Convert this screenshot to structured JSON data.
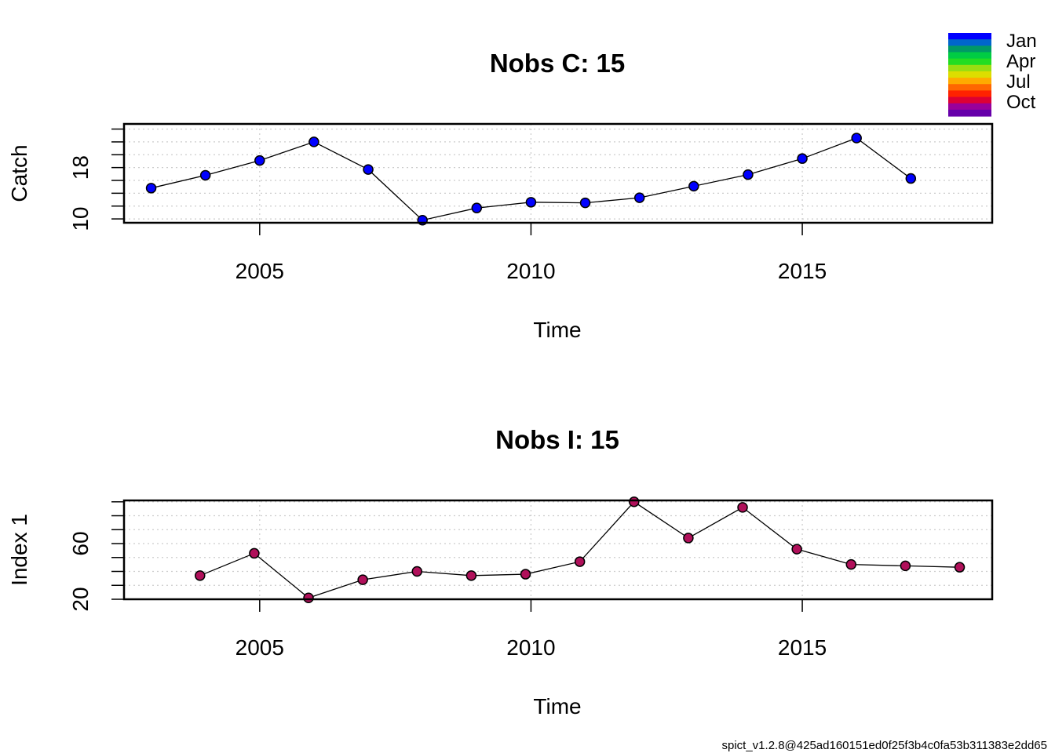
{
  "chart_data": [
    {
      "type": "line",
      "title": "Nobs C: 15",
      "xlabel": "Time",
      "ylabel": "Catch",
      "xlim": [
        2002.5,
        2018.5
      ],
      "ylim": [
        9.4,
        24.8
      ],
      "xticks": [
        2005,
        2010,
        2015
      ],
      "yticks": [
        10,
        12,
        14,
        16,
        18,
        20,
        22,
        24
      ],
      "ytick_labels": [
        10,
        18
      ],
      "grid": true,
      "point_color": "#0000FF",
      "series": [
        {
          "x": [
            2003,
            2004,
            2005,
            2006,
            2007,
            2008,
            2009,
            2010,
            2011,
            2012,
            2013,
            2014,
            2015,
            2016,
            2017
          ],
          "y": [
            14.8,
            16.8,
            19.1,
            22.0,
            17.7,
            9.8,
            11.7,
            12.6,
            12.5,
            13.3,
            15.1,
            16.9,
            19.4,
            22.6,
            16.3
          ]
        }
      ]
    },
    {
      "type": "line",
      "title": "Nobs I: 15",
      "xlabel": "Time",
      "ylabel": "Index 1",
      "xlim": [
        2002.5,
        2018.5
      ],
      "ylim": [
        20,
        91
      ],
      "xticks": [
        2005,
        2010,
        2015
      ],
      "yticks": [
        20,
        30,
        40,
        50,
        60,
        70,
        80,
        90
      ],
      "ytick_labels": [
        20,
        60
      ],
      "grid": true,
      "point_color": "#B0105A",
      "series": [
        {
          "x": [
            2003.9,
            2004.9,
            2005.9,
            2006.9,
            2007.9,
            2008.9,
            2009.9,
            2010.9,
            2011.9,
            2012.9,
            2013.9,
            2014.9,
            2015.9,
            2016.9,
            2017.9
          ],
          "y": [
            37,
            53,
            21,
            34,
            40,
            37,
            38,
            47,
            90,
            64,
            86,
            56,
            45,
            44,
            43
          ]
        }
      ]
    }
  ],
  "legend": {
    "labels": [
      "Jan",
      "Apr",
      "Jul",
      "Oct"
    ],
    "colors": [
      "#0000FF",
      "#0066CC",
      "#009966",
      "#00CC44",
      "#22DD22",
      "#99DD11",
      "#DDDD00",
      "#FFAA00",
      "#FF6600",
      "#FF2200",
      "#DD0033",
      "#990099",
      "#6600AA"
    ]
  },
  "footer": "spict_v1.2.8@425ad160151ed0f25f3b4c0fa53b311383e2dd65"
}
